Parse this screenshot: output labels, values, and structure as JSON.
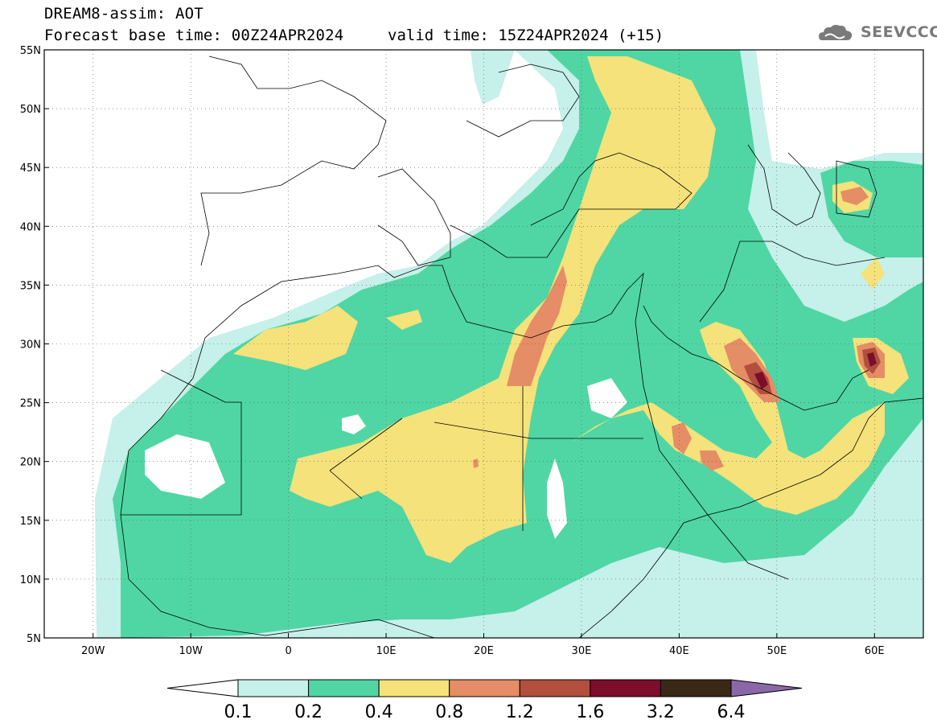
{
  "header": {
    "title": "DREAM8-assim: AOT",
    "base_time": "Forecast base time: 00Z24APR2024",
    "valid_time": "valid time: 15Z24APR2024 (+15)",
    "logo_text": "SEEVCCC"
  },
  "map": {
    "lon_range": [
      -25,
      65
    ],
    "lat_range": [
      5,
      55
    ],
    "x_ticks": [
      {
        "lon": -20,
        "label": "20W"
      },
      {
        "lon": -10,
        "label": "10W"
      },
      {
        "lon": 0,
        "label": "0"
      },
      {
        "lon": 10,
        "label": "10E"
      },
      {
        "lon": 20,
        "label": "20E"
      },
      {
        "lon": 30,
        "label": "30E"
      },
      {
        "lon": 40,
        "label": "40E"
      },
      {
        "lon": 50,
        "label": "50E"
      },
      {
        "lon": 60,
        "label": "60E"
      }
    ],
    "y_ticks": [
      {
        "lat": 55,
        "label": "55N"
      },
      {
        "lat": 50,
        "label": "50N"
      },
      {
        "lat": 45,
        "label": "45N"
      },
      {
        "lat": 40,
        "label": "40N"
      },
      {
        "lat": 35,
        "label": "35N"
      },
      {
        "lat": 30,
        "label": "30N"
      },
      {
        "lat": 25,
        "label": "25N"
      },
      {
        "lat": 20,
        "label": "20N"
      },
      {
        "lat": 15,
        "label": "15N"
      },
      {
        "lat": 10,
        "label": "10N"
      },
      {
        "lat": 5,
        "label": "5N"
      }
    ],
    "grid": true
  },
  "colorbar": {
    "levels": [
      "0.1",
      "0.2",
      "0.4",
      "0.8",
      "1.2",
      "1.6",
      "3.2",
      "6.4"
    ],
    "colors": [
      "#ffffff",
      "#c6f0ea",
      "#4fd6a4",
      "#f5e27a",
      "#e58d66",
      "#b24f3d",
      "#7c0d2c",
      "#3a2817",
      "#8a68a8"
    ]
  }
}
